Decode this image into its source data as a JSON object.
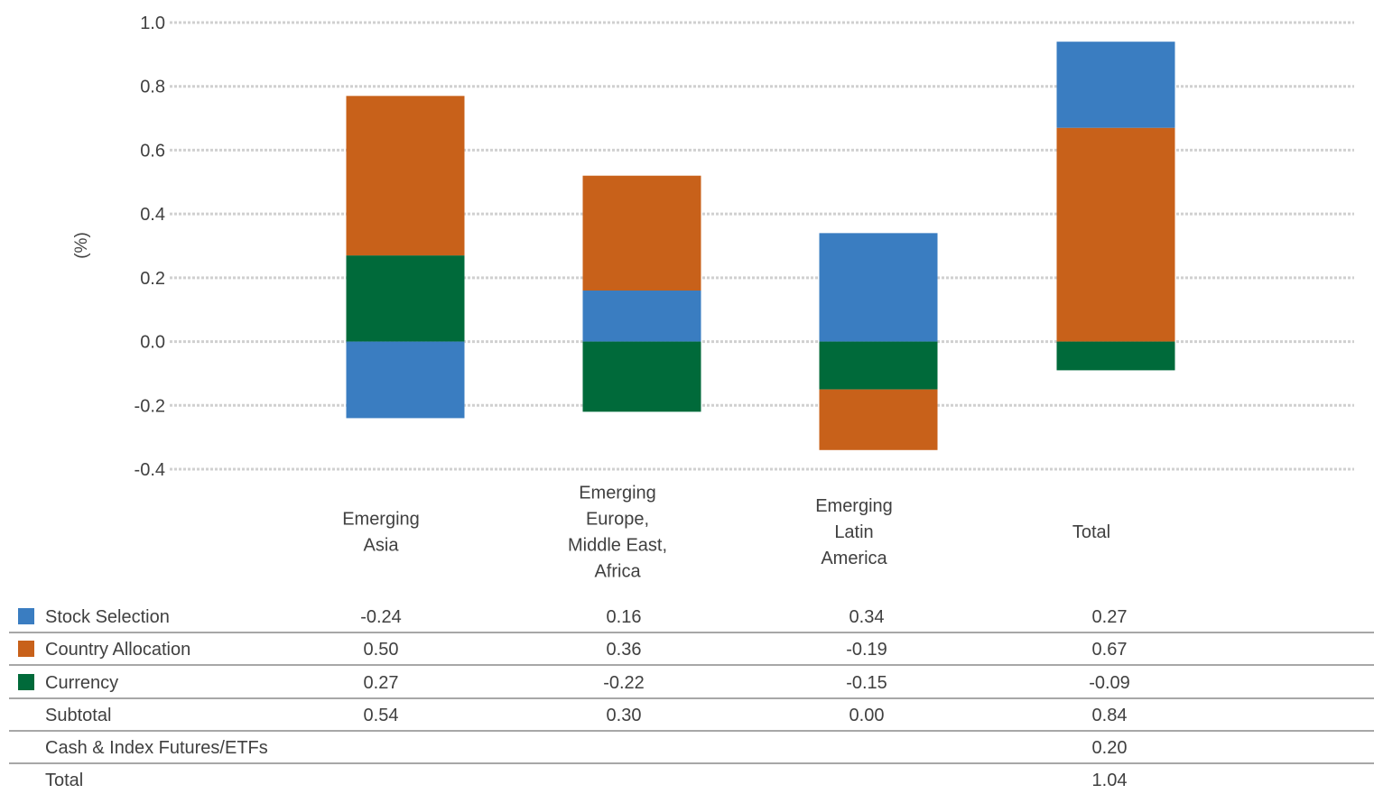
{
  "chart_data": {
    "type": "bar",
    "stacked": true,
    "ylabel": "(%)",
    "xlabel": "",
    "ylim": [
      -0.4,
      1.0
    ],
    "yticks": [
      1.0,
      0.8,
      0.6,
      0.4,
      0.2,
      0.0,
      -0.2,
      -0.4
    ],
    "ytick_labels": [
      "1.0",
      "0.8",
      "0.6",
      "0.4",
      "0.2",
      "0.0",
      "-0.2",
      "-0.4"
    ],
    "grid": "horizontal dotted",
    "categories": [
      [
        "Emerging",
        "Asia"
      ],
      [
        "Emerging",
        "Europe,",
        "Middle East,",
        "Africa"
      ],
      [
        "Emerging",
        "Latin",
        "America"
      ],
      [
        "Total"
      ]
    ],
    "series": [
      {
        "name": "Stock Selection",
        "color": "#3a7dc1",
        "values": [
          -0.24,
          0.16,
          0.34,
          0.27
        ]
      },
      {
        "name": "Country Allocation",
        "color": "#c8611a",
        "values": [
          0.5,
          0.36,
          -0.19,
          0.67
        ]
      },
      {
        "name": "Currency",
        "color": "#006a3a",
        "values": [
          0.27,
          -0.22,
          -0.15,
          -0.09
        ]
      }
    ],
    "table": {
      "rows": [
        {
          "label": "Stock Selection",
          "swatch": "#3a7dc1",
          "cells": [
            "-0.24",
            "0.16",
            "0.34",
            "0.27"
          ]
        },
        {
          "label": "Country Allocation",
          "swatch": "#c8611a",
          "cells": [
            "0.50",
            "0.36",
            "-0.19",
            "0.67"
          ]
        },
        {
          "label": "Currency",
          "swatch": "#006a3a",
          "cells": [
            "0.27",
            "-0.22",
            "-0.15",
            "-0.09"
          ]
        },
        {
          "label": "Subtotal",
          "swatch": null,
          "cells": [
            "0.54",
            "0.30",
            "0.00",
            "0.84"
          ]
        },
        {
          "label": "Cash & Index Futures/ETFs",
          "swatch": null,
          "cells": [
            "",
            "",
            "",
            "0.20"
          ]
        },
        {
          "label": "Total",
          "swatch": null,
          "cells": [
            "",
            "",
            "",
            "1.04"
          ]
        }
      ]
    }
  }
}
